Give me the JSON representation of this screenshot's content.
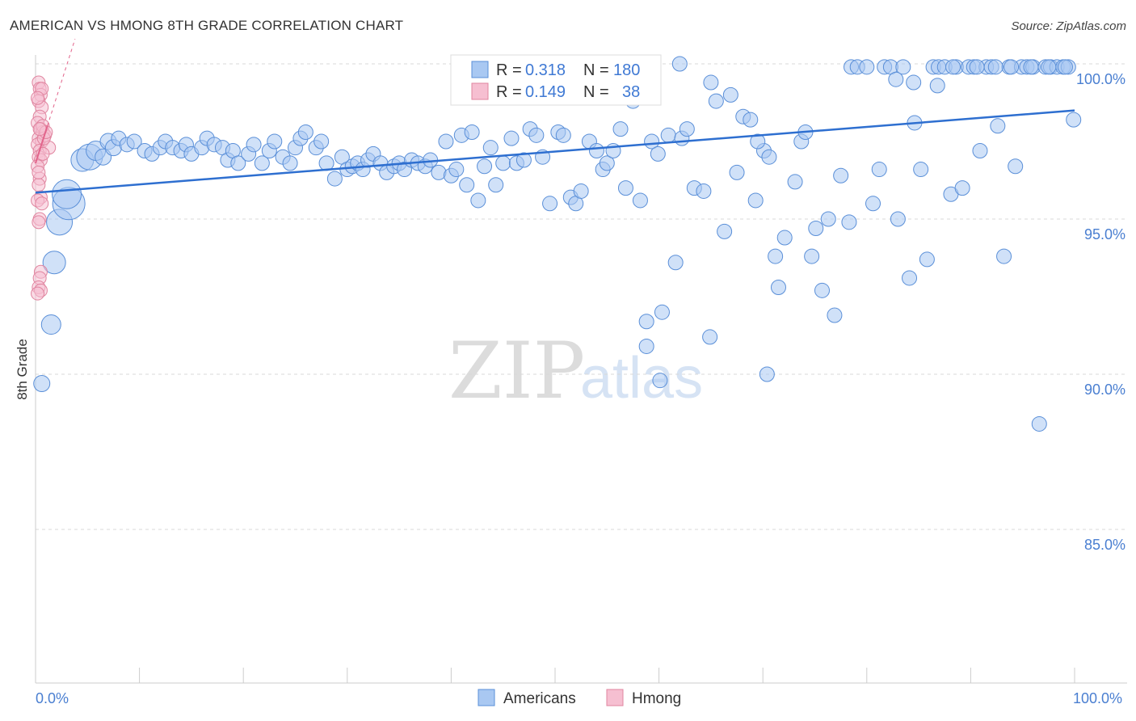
{
  "title": "AMERICAN VS HMONG 8TH GRADE CORRELATION CHART",
  "source": "Source: ZipAtlas.com",
  "watermark": {
    "zip": "ZIP",
    "atlas": "atlas"
  },
  "legend": {
    "rows": [
      {
        "r_label": "R = ",
        "r_value": "0.318",
        "n_label": "N = ",
        "n_value": "180",
        "color": "#a9c8f2",
        "stroke": "#5a8fd8"
      },
      {
        "r_label": "R = ",
        "r_value": "0.149",
        "n_label": "N = ",
        "n_value": "38",
        "color": "#f6bfd1",
        "stroke": "#e0849f"
      }
    ]
  },
  "bottom_legend": [
    {
      "label": "Americans",
      "color": "#a9c8f2",
      "stroke": "#5a8fd8"
    },
    {
      "label": "Hmong",
      "color": "#f6bfd1",
      "stroke": "#e0849f"
    }
  ],
  "chart_data": {
    "type": "scatter",
    "title": "AMERICAN VS HMONG 8TH GRADE CORRELATION CHART",
    "xlabel": "",
    "ylabel": "8th Grade",
    "xlim": [
      0,
      100
    ],
    "ylim": [
      80.5,
      100.8
    ],
    "x_tick_labels": [
      "0.0%",
      "100.0%"
    ],
    "y_ticks": [
      100,
      95,
      90,
      85
    ],
    "y_tick_labels": [
      "100.0%",
      "95.0%",
      "90.0%",
      "85.0%"
    ],
    "colors": {
      "americans_fill": "#a9c8f2",
      "americans_stroke": "#5a8fd8",
      "americans_line": "#2e6fd0",
      "hmong_fill": "#f6bfd1",
      "hmong_stroke": "#e0849f",
      "hmong_line": "#e2648b"
    },
    "series": [
      {
        "name": "Americans",
        "r": 0.318,
        "n": 180,
        "trend": {
          "x": [
            0,
            100
          ],
          "y": [
            95.85,
            98.5
          ]
        },
        "points": [
          [
            0.6,
            89.7,
            10
          ],
          [
            1.5,
            91.6,
            12
          ],
          [
            1.8,
            93.6,
            14
          ],
          [
            2.3,
            94.9,
            16
          ],
          [
            3.2,
            95.5,
            20
          ],
          [
            3.0,
            95.8,
            18
          ],
          [
            4.5,
            96.9,
            14
          ],
          [
            5.2,
            97.0,
            16
          ],
          [
            5.8,
            97.2,
            12
          ],
          [
            6.5,
            97.0,
            10
          ],
          [
            7.0,
            97.5,
            10
          ],
          [
            7.5,
            97.3,
            10
          ],
          [
            8.0,
            97.6,
            9
          ],
          [
            8.8,
            97.4,
            9
          ],
          [
            9.5,
            97.5,
            9
          ],
          [
            10.5,
            97.2,
            9
          ],
          [
            11.2,
            97.1,
            9
          ],
          [
            12.0,
            97.3,
            9
          ],
          [
            12.5,
            97.5,
            9
          ],
          [
            13.2,
            97.3,
            9
          ],
          [
            14.0,
            97.2,
            9
          ],
          [
            14.5,
            97.4,
            9
          ],
          [
            15.0,
            97.1,
            9
          ],
          [
            16.0,
            97.3,
            9
          ],
          [
            16.5,
            97.6,
            9
          ],
          [
            17.2,
            97.4,
            9
          ],
          [
            18.0,
            97.3,
            9
          ],
          [
            18.5,
            96.9,
            9
          ],
          [
            19.0,
            97.2,
            9
          ],
          [
            19.5,
            96.8,
            9
          ],
          [
            20.5,
            97.1,
            9
          ],
          [
            21.0,
            97.4,
            9
          ],
          [
            21.8,
            96.8,
            9
          ],
          [
            22.5,
            97.2,
            9
          ],
          [
            23.0,
            97.5,
            9
          ],
          [
            23.8,
            97.0,
            9
          ],
          [
            24.5,
            96.8,
            9
          ],
          [
            25.0,
            97.3,
            9
          ],
          [
            25.5,
            97.6,
            9
          ],
          [
            26.0,
            97.8,
            9
          ],
          [
            27.0,
            97.3,
            9
          ],
          [
            27.5,
            97.5,
            9
          ],
          [
            28.0,
            96.8,
            9
          ],
          [
            28.8,
            96.3,
            9
          ],
          [
            29.5,
            97.0,
            9
          ],
          [
            30.0,
            96.6,
            9
          ],
          [
            30.5,
            96.7,
            9
          ],
          [
            31.0,
            96.8,
            9
          ],
          [
            31.5,
            96.6,
            9
          ],
          [
            32.0,
            96.9,
            9
          ],
          [
            32.5,
            97.1,
            9
          ],
          [
            33.2,
            96.8,
            9
          ],
          [
            33.8,
            96.5,
            9
          ],
          [
            34.5,
            96.7,
            9
          ],
          [
            35.0,
            96.8,
            9
          ],
          [
            35.5,
            96.6,
            9
          ],
          [
            36.2,
            96.9,
            9
          ],
          [
            36.8,
            96.8,
            9
          ],
          [
            37.5,
            96.7,
            9
          ],
          [
            38.0,
            96.9,
            9
          ],
          [
            38.8,
            96.5,
            9
          ],
          [
            39.5,
            97.5,
            9
          ],
          [
            40.0,
            96.4,
            9
          ],
          [
            40.5,
            96.6,
            9
          ],
          [
            41.0,
            97.7,
            9
          ],
          [
            41.5,
            96.1,
            9
          ],
          [
            42.0,
            97.8,
            9
          ],
          [
            42.6,
            95.6,
            9
          ],
          [
            43.2,
            96.7,
            9
          ],
          [
            43.8,
            97.3,
            9
          ],
          [
            44.3,
            96.1,
            9
          ],
          [
            45.0,
            96.8,
            9
          ],
          [
            45.8,
            97.6,
            9
          ],
          [
            46.3,
            96.8,
            9
          ],
          [
            47.0,
            96.9,
            9
          ],
          [
            47.6,
            97.9,
            9
          ],
          [
            48.2,
            97.7,
            9
          ],
          [
            48.8,
            97.0,
            9
          ],
          [
            49.5,
            95.5,
            9
          ],
          [
            50.3,
            97.8,
            9
          ],
          [
            50.8,
            97.7,
            9
          ],
          [
            51.5,
            95.7,
            9
          ],
          [
            52.0,
            95.5,
            9
          ],
          [
            52.5,
            95.9,
            9
          ],
          [
            53.3,
            97.5,
            9
          ],
          [
            54.0,
            97.2,
            9
          ],
          [
            54.6,
            96.6,
            9
          ],
          [
            55.0,
            96.8,
            9
          ],
          [
            55.6,
            97.2,
            9
          ],
          [
            56.3,
            97.9,
            9
          ],
          [
            56.8,
            96.0,
            9
          ],
          [
            57.5,
            98.8,
            9
          ],
          [
            58.2,
            95.6,
            9
          ],
          [
            58.8,
            91.7,
            9
          ],
          [
            59.3,
            97.5,
            9
          ],
          [
            59.9,
            97.1,
            9
          ],
          [
            60.3,
            92.0,
            9
          ],
          [
            60.9,
            97.7,
            9
          ],
          [
            61.6,
            93.6,
            9
          ],
          [
            62.2,
            97.6,
            9
          ],
          [
            62.7,
            97.9,
            9
          ],
          [
            63.4,
            96.0,
            9
          ],
          [
            64.3,
            95.9,
            9
          ],
          [
            64.9,
            91.2,
            9
          ],
          [
            65.5,
            98.8,
            9
          ],
          [
            66.3,
            94.6,
            9
          ],
          [
            66.9,
            99.0,
            9
          ],
          [
            67.5,
            96.5,
            9
          ],
          [
            68.1,
            98.3,
            9
          ],
          [
            68.8,
            98.2,
            9
          ],
          [
            69.3,
            95.6,
            9
          ],
          [
            70.1,
            97.2,
            9
          ],
          [
            70.6,
            97.0,
            9
          ],
          [
            71.2,
            93.8,
            9
          ],
          [
            71.5,
            92.8,
            9
          ],
          [
            72.1,
            94.4,
            9
          ],
          [
            73.1,
            96.2,
            9
          ],
          [
            73.7,
            97.5,
            9
          ],
          [
            74.1,
            97.8,
            9
          ],
          [
            74.7,
            93.8,
            9
          ],
          [
            75.1,
            94.7,
            9
          ],
          [
            75.7,
            92.7,
            9
          ],
          [
            76.3,
            95.0,
            9
          ],
          [
            76.9,
            91.9,
            9
          ],
          [
            77.5,
            96.4,
            9
          ],
          [
            78.3,
            94.9,
            9
          ],
          [
            78.5,
            99.9,
            9
          ],
          [
            79.1,
            99.9,
            9
          ],
          [
            80.0,
            99.9,
            9
          ],
          [
            80.6,
            95.5,
            9
          ],
          [
            81.2,
            96.6,
            9
          ],
          [
            81.7,
            99.9,
            9
          ],
          [
            82.3,
            99.9,
            9
          ],
          [
            83.0,
            95.0,
            9
          ],
          [
            83.5,
            99.9,
            9
          ],
          [
            84.1,
            93.1,
            9
          ],
          [
            84.6,
            98.1,
            9
          ],
          [
            85.2,
            96.6,
            9
          ],
          [
            85.8,
            93.7,
            9
          ],
          [
            86.4,
            99.9,
            9
          ],
          [
            86.9,
            99.9,
            9
          ],
          [
            87.5,
            99.9,
            9
          ],
          [
            88.1,
            95.8,
            9
          ],
          [
            88.6,
            99.9,
            9
          ],
          [
            89.2,
            96.0,
            9
          ],
          [
            89.8,
            99.9,
            9
          ],
          [
            90.3,
            99.9,
            9
          ],
          [
            90.9,
            97.2,
            9
          ],
          [
            91.5,
            99.9,
            9
          ],
          [
            92.0,
            99.9,
            9
          ],
          [
            92.6,
            98.0,
            9
          ],
          [
            93.2,
            93.8,
            9
          ],
          [
            93.7,
            99.9,
            9
          ],
          [
            94.3,
            96.7,
            9
          ],
          [
            94.9,
            99.9,
            9
          ],
          [
            95.4,
            99.9,
            9
          ],
          [
            96.0,
            99.9,
            9
          ],
          [
            96.6,
            88.4,
            9
          ],
          [
            97.2,
            99.9,
            9
          ],
          [
            97.7,
            99.9,
            9
          ],
          [
            98.3,
            99.9,
            9
          ],
          [
            98.9,
            99.9,
            9
          ],
          [
            99.4,
            99.9,
            9
          ],
          [
            99.9,
            98.2,
            9
          ],
          [
            82.8,
            99.5,
            9
          ],
          [
            84.5,
            99.4,
            9
          ],
          [
            86.8,
            99.3,
            9
          ],
          [
            88.3,
            99.9,
            9
          ],
          [
            90.6,
            99.9,
            9
          ],
          [
            92.4,
            99.9,
            9
          ],
          [
            93.9,
            99.9,
            9
          ],
          [
            95.8,
            99.9,
            9
          ],
          [
            97.5,
            99.9,
            9
          ],
          [
            99.1,
            99.9,
            9
          ],
          [
            62.0,
            100.0,
            9
          ],
          [
            65.0,
            99.4,
            9
          ],
          [
            69.5,
            97.5,
            9
          ],
          [
            70.4,
            90.0,
            9
          ],
          [
            58.8,
            90.9,
            9
          ],
          [
            60.1,
            89.8,
            9
          ]
        ]
      },
      {
        "name": "Hmong",
        "r": 0.149,
        "n": 38,
        "trend": {
          "x": [
            0,
            3.8
          ],
          "y": [
            96.8,
            100.8
          ]
        },
        "points": [
          [
            0.3,
            99.4,
            8
          ],
          [
            0.4,
            99.2,
            8
          ],
          [
            0.5,
            99.0,
            8
          ],
          [
            0.3,
            98.8,
            8
          ],
          [
            0.6,
            98.6,
            8
          ],
          [
            0.4,
            98.3,
            8
          ],
          [
            0.2,
            98.1,
            8
          ],
          [
            0.5,
            97.9,
            8
          ],
          [
            0.7,
            97.8,
            8
          ],
          [
            0.3,
            97.6,
            8
          ],
          [
            0.6,
            97.5,
            8
          ],
          [
            0.9,
            97.7,
            8
          ],
          [
            0.2,
            97.4,
            8
          ],
          [
            0.4,
            97.2,
            8
          ],
          [
            1.3,
            97.3,
            8
          ],
          [
            0.3,
            97.0,
            8
          ],
          [
            0.5,
            96.9,
            8
          ],
          [
            0.2,
            96.7,
            8
          ],
          [
            0.4,
            96.3,
            8
          ],
          [
            0.3,
            96.1,
            8
          ],
          [
            0.5,
            95.7,
            8
          ],
          [
            0.2,
            95.6,
            8
          ],
          [
            0.6,
            95.5,
            8
          ],
          [
            0.4,
            95.0,
            8
          ],
          [
            0.3,
            94.9,
            8
          ],
          [
            0.5,
            93.3,
            8
          ],
          [
            0.4,
            93.1,
            8
          ],
          [
            0.3,
            92.8,
            8
          ],
          [
            0.5,
            92.7,
            8
          ],
          [
            0.2,
            92.6,
            8
          ],
          [
            0.7,
            98.0,
            8
          ],
          [
            0.8,
            97.6,
            8
          ],
          [
            1.0,
            97.8,
            8
          ],
          [
            0.6,
            99.2,
            8
          ],
          [
            0.2,
            98.9,
            8
          ],
          [
            0.4,
            97.9,
            8
          ],
          [
            0.7,
            97.1,
            8
          ],
          [
            0.3,
            96.5,
            8
          ]
        ]
      }
    ]
  }
}
